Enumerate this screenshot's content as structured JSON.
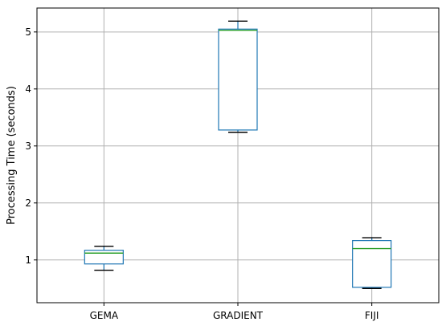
{
  "chart_data": {
    "type": "box",
    "title": "",
    "xlabel": "",
    "ylabel": "Processing Time (seconds)",
    "categories": [
      "GEMA",
      "GRADIENT",
      "FIJI"
    ],
    "boxes": [
      {
        "category": "GEMA",
        "whisker_low": 0.82,
        "q1": 0.93,
        "median": 1.12,
        "q3": 1.17,
        "whisker_high": 1.24
      },
      {
        "category": "GRADIENT",
        "whisker_low": 3.24,
        "q1": 3.28,
        "median": 5.03,
        "q3": 5.05,
        "whisker_high": 5.19
      },
      {
        "category": "FIJI",
        "whisker_low": 0.5,
        "q1": 0.52,
        "median": 1.2,
        "q3": 1.34,
        "whisker_high": 1.39
      }
    ],
    "ylim": [
      0.25,
      5.42
    ],
    "yticks": [
      1,
      2,
      3,
      4,
      5
    ],
    "grid": true,
    "colors": {
      "box": "#1f77b4",
      "median": "#2ca02c",
      "whisker": "#000000",
      "grid": "#b0b0b0"
    }
  }
}
